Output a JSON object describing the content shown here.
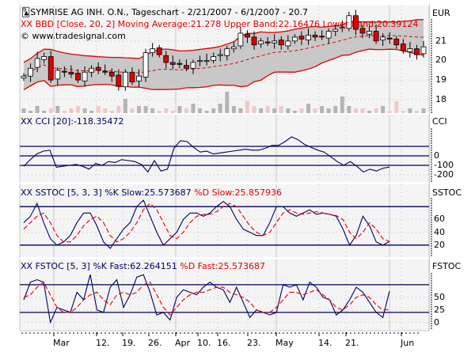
{
  "header": {
    "title": "SYMRISE AG INH. O.N., Tageschart - 2/21/2007 - 6/1/2007 - 20.7",
    "bbd_label": "BBD [Close, 20, 2] Moving Average:21.278 Upper Band:22.16476 Lower Band:20.39124",
    "copyright": "© www.tradesignal.com",
    "currency": "EUR"
  },
  "panels": {
    "cci": {
      "label": "CCI [20]:-118.35472",
      "axis_title": "CCI"
    },
    "sstoc": {
      "label_k": "SSTOC [5, 3, 3] %K Slow:25.573687",
      "label_d": "%D Slow:25.857936",
      "axis_title": "SSTOC"
    },
    "fstoc": {
      "label_k": "FSTOC [5, 3] %K Fast:62.264151",
      "label_d": "%D Fast:25.573687",
      "axis_title": "FSTOC"
    }
  },
  "colors": {
    "up": "#ffffff",
    "down": "#e00000",
    "band": "#e00000",
    "band_fill": "#c8c8c8",
    "indicator": "#000060",
    "signal": "#e00000",
    "plot_bg": "#f4f4f4",
    "grid": "#c0c0c0"
  },
  "chart_data": [
    {
      "type": "candlestick",
      "title": "SYMRISE AG INH. O.N., Tageschart - 2/21/2007 - 6/1/2007 - 20.7",
      "ylabel": "EUR",
      "yticks": [
        18,
        19,
        20,
        21
      ],
      "ylim": [
        17.3,
        22.9
      ],
      "xticks": [
        "Mar",
        "12.",
        "19.",
        "26.",
        "Apr",
        "10.",
        "16.",
        "23.",
        "May",
        "14.",
        "21.",
        "Jun"
      ],
      "last_close": 20.7,
      "indicators": {
        "moving_average": 21.278,
        "upper_band": 22.16476,
        "lower_band": 20.39124
      },
      "close_approx": [
        19.2,
        19.6,
        20.1,
        20.2,
        19.0,
        19.5,
        19.4,
        19.3,
        19.0,
        19.4,
        19.6,
        19.5,
        19.4,
        19.2,
        18.7,
        19.4,
        18.9,
        19.2,
        20.4,
        20.6,
        20.3,
        19.9,
        19.8,
        19.8,
        19.6,
        19.9,
        20.0,
        20.0,
        20.2,
        20.3,
        20.6,
        20.7,
        21.4,
        21.2,
        20.8,
        21.0,
        20.9,
        21.0,
        20.8,
        21.0,
        21.2,
        21.1,
        21.3,
        21.2,
        21.2,
        21.5,
        21.6,
        21.7,
        22.3,
        21.6,
        21.4,
        21.5,
        21.0,
        21.2,
        21.1,
        20.8,
        20.5,
        20.6,
        20.3,
        20.7
      ],
      "volume_relative": [
        0.2,
        0.1,
        0.3,
        0.1,
        0.2,
        0.3,
        0.1,
        0.2,
        0.3,
        0.2,
        0.1,
        0.3,
        0.2,
        0.1,
        0.3,
        0.6,
        0.2,
        0.3,
        0.3,
        0.2,
        0.1,
        0.2,
        0.1,
        0.3,
        0.2,
        0.4,
        0.2,
        0.1,
        0.2,
        0.4,
        0.9,
        0.3,
        0.2,
        0.5,
        0.3,
        0.2,
        0.3,
        0.2,
        0.3,
        0.2,
        0.1,
        0.2,
        0.4,
        0.2,
        0.3,
        0.2,
        0.3,
        0.7,
        0.3,
        0.2,
        0.2,
        0.1,
        0.2,
        0.3,
        0.1,
        0.5,
        0.1,
        0.2,
        0.1,
        0.2
      ]
    },
    {
      "type": "line",
      "title": "CCI [20]:-118.35472",
      "yticks": [
        0,
        -100,
        -200
      ],
      "reference_lines": [
        100,
        0,
        -100
      ],
      "ylim": [
        -250,
        300
      ],
      "series": [
        {
          "name": "CCI",
          "values": [
            -110,
            -40,
            20,
            50,
            60,
            -120,
            -110,
            -100,
            -90,
            -110,
            -140,
            -80,
            -100,
            -60,
            -70,
            -40,
            -50,
            -60,
            -90,
            -170,
            -50,
            -160,
            -140,
            80,
            160,
            150,
            90,
            40,
            50,
            20,
            30,
            40,
            50,
            60,
            70,
            60,
            60,
            80,
            110,
            110,
            150,
            200,
            170,
            120,
            90,
            60,
            40,
            -10,
            -60,
            -100,
            -60,
            -110,
            -170,
            -140,
            -160,
            -130,
            -118
          ]
        }
      ]
    },
    {
      "type": "line",
      "title": "SSTOC [5, 3, 3]",
      "yticks": [
        60,
        40,
        20
      ],
      "reference_lines": [
        80,
        20
      ],
      "ylim": [
        5,
        95
      ],
      "series": [
        {
          "name": "%K Slow",
          "values": [
            55,
            65,
            85,
            55,
            30,
            20,
            25,
            35,
            55,
            70,
            70,
            50,
            25,
            15,
            30,
            45,
            55,
            80,
            90,
            65,
            40,
            20,
            30,
            40,
            60,
            70,
            70,
            65,
            70,
            80,
            88,
            80,
            60,
            45,
            40,
            35,
            35,
            55,
            80,
            80,
            70,
            65,
            70,
            75,
            68,
            70,
            68,
            65,
            45,
            20,
            35,
            65,
            50,
            25,
            20,
            25.57
          ]
        },
        {
          "name": "%D Slow",
          "values": [
            45,
            55,
            65,
            70,
            55,
            35,
            25,
            25,
            35,
            50,
            60,
            65,
            55,
            35,
            25,
            30,
            40,
            55,
            75,
            85,
            75,
            55,
            35,
            30,
            40,
            55,
            65,
            68,
            68,
            72,
            80,
            85,
            80,
            65,
            50,
            40,
            35,
            40,
            55,
            70,
            75,
            70,
            68,
            70,
            72,
            70,
            68,
            66,
            60,
            40,
            30,
            40,
            55,
            45,
            30,
            25.86
          ]
        }
      ]
    },
    {
      "type": "line",
      "title": "FSTOC [5, 3]",
      "yticks": [
        50,
        25,
        0
      ],
      "reference_lines": [
        75,
        20
      ],
      "ylim": [
        -10,
        100
      ],
      "series": [
        {
          "name": "%K Fast",
          "values": [
            45,
            80,
            85,
            80,
            0,
            30,
            25,
            20,
            60,
            45,
            95,
            25,
            20,
            70,
            85,
            30,
            55,
            90,
            95,
            60,
            15,
            20,
            5,
            50,
            65,
            60,
            55,
            70,
            80,
            70,
            65,
            40,
            70,
            40,
            10,
            25,
            20,
            15,
            20,
            75,
            70,
            75,
            45,
            80,
            70,
            50,
            45,
            15,
            25,
            45,
            70,
            60,
            40,
            20,
            10,
            62.26
          ]
        },
        {
          "name": "%D Fast",
          "values": [
            50,
            55,
            70,
            80,
            55,
            30,
            20,
            20,
            30,
            45,
            55,
            60,
            45,
            35,
            55,
            60,
            55,
            60,
            75,
            80,
            55,
            30,
            15,
            30,
            45,
            55,
            60,
            60,
            65,
            70,
            70,
            60,
            55,
            50,
            40,
            25,
            20,
            20,
            30,
            45,
            60,
            60,
            55,
            60,
            65,
            55,
            45,
            30,
            25,
            35,
            50,
            55,
            50,
            35,
            25,
            25.57
          ]
        }
      ]
    }
  ]
}
